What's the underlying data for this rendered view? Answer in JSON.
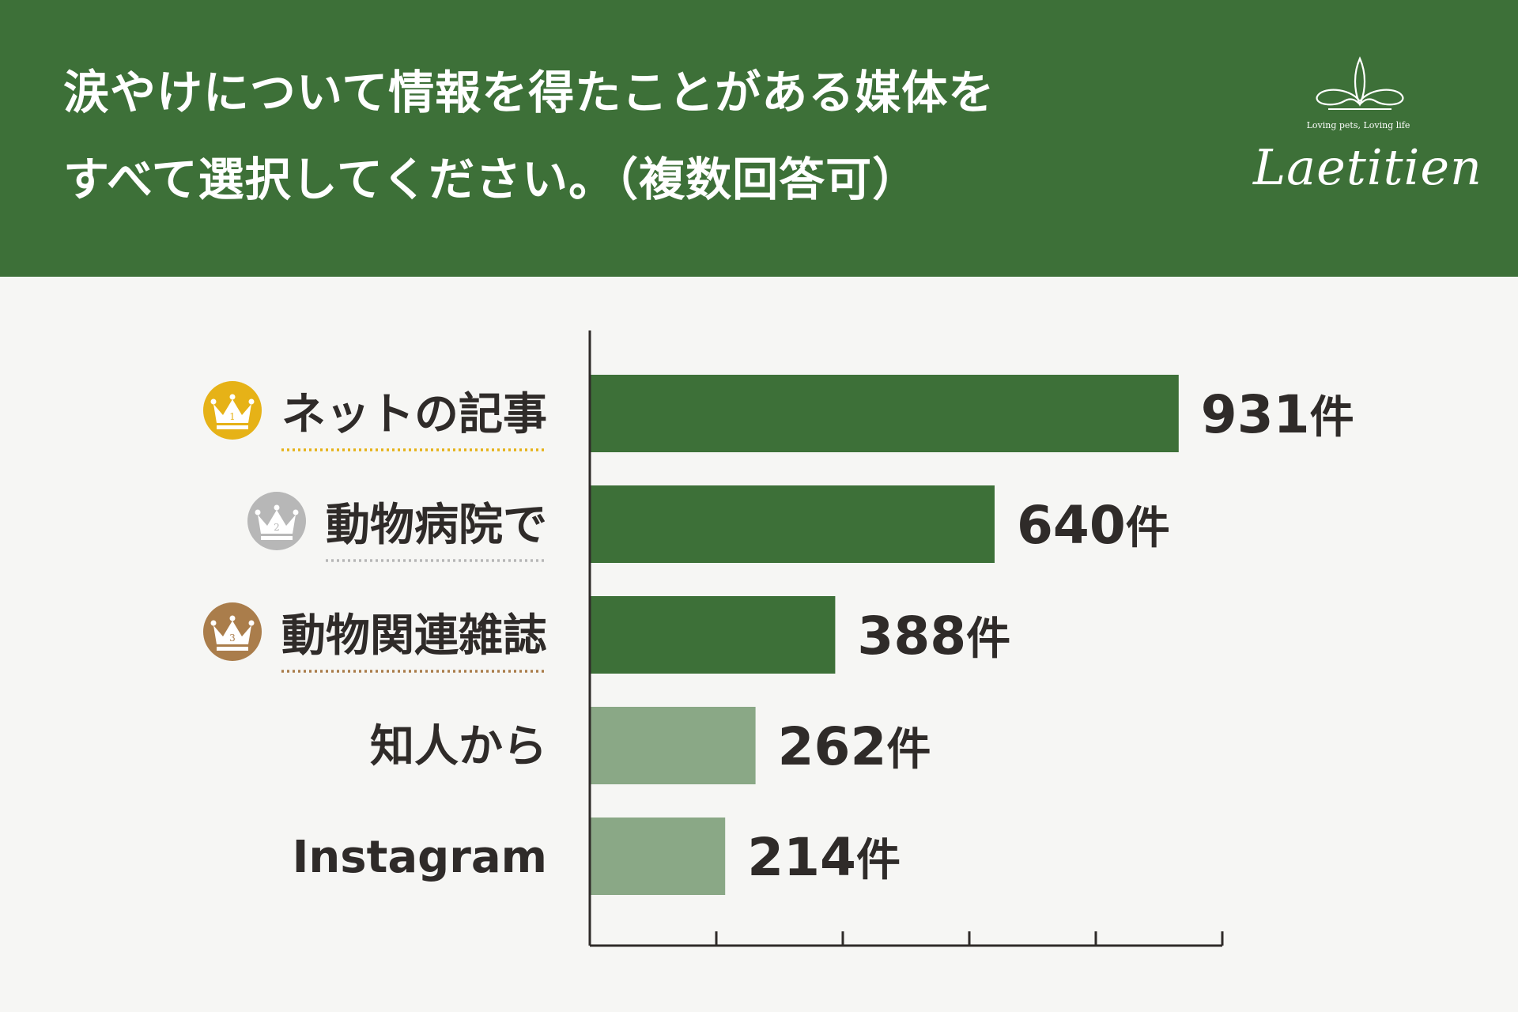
{
  "header": {
    "title_line1": "涙やけについて情報を得たことがある媒体を",
    "title_line2": "すべて選択してください。（複数回答可）",
    "bg_color": "#3d7038"
  },
  "logo": {
    "tagline": "Loving pets, Loving life",
    "brand": "Laetitien"
  },
  "ranks": [
    {
      "number": "1",
      "icon": "gold-crown-icon",
      "color": "#e6b217"
    },
    {
      "number": "2",
      "icon": "silver-crown-icon",
      "color": "#b7b7b7"
    },
    {
      "number": "3",
      "icon": "bronze-crown-icon",
      "color": "#aa7d4b"
    }
  ],
  "chart_data": {
    "type": "bar",
    "orientation": "horizontal",
    "categories": [
      "ネットの記事",
      "動物病院で",
      "動物関連雑誌",
      "知人から",
      "Instagram"
    ],
    "values": [
      931,
      640,
      388,
      262,
      214
    ],
    "value_labels": [
      "931",
      "640",
      "388",
      "262",
      "214"
    ],
    "unit": "件",
    "xlim": [
      0,
      1000
    ],
    "x_tick_values": [
      0,
      200,
      400,
      600,
      800,
      1000
    ],
    "grid": false,
    "colors": {
      "top3": "#3d7038",
      "others": "#8aa886",
      "axis": "#2f2b29"
    }
  }
}
